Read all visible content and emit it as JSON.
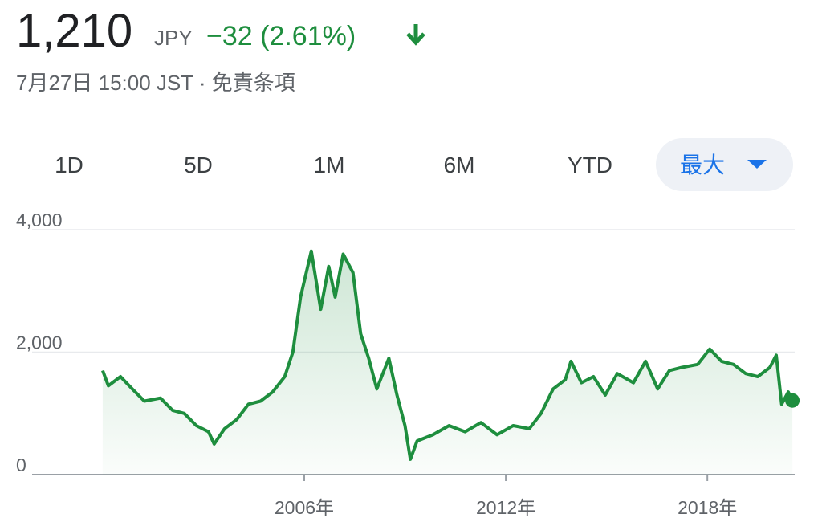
{
  "header": {
    "price": "1,210",
    "currency": "JPY",
    "change": "−32 (2.61%)",
    "timestamp": "7月27日 15:00 JST · 免責条項"
  },
  "range_buttons": {
    "labels": [
      "1D",
      "5D",
      "1M",
      "6M",
      "YTD",
      "最大"
    ],
    "selected": 5
  },
  "chart_data": {
    "type": "line",
    "color": "#1e8e3e",
    "x": [
      2000.0,
      2000.17,
      2000.53,
      2000.88,
      2001.24,
      2001.72,
      2002.08,
      2002.43,
      2002.79,
      2003.15,
      2003.32,
      2003.63,
      2003.99,
      2004.34,
      2004.7,
      2005.06,
      2005.42,
      2005.66,
      2005.89,
      2006.21,
      2006.49,
      2006.73,
      2006.92,
      2007.16,
      2007.45,
      2007.68,
      2007.92,
      2008.16,
      2008.52,
      2008.76,
      2009.0,
      2009.16,
      2009.36,
      2009.83,
      2010.31,
      2010.79,
      2011.26,
      2011.74,
      2012.22,
      2012.7,
      2013.05,
      2013.41,
      2013.77,
      2013.94,
      2014.25,
      2014.61,
      2014.96,
      2015.32,
      2015.8,
      2016.16,
      2016.52,
      2016.87,
      2017.23,
      2017.71,
      2018.07,
      2018.42,
      2018.78,
      2019.14,
      2019.5,
      2019.86,
      2020.05,
      2020.21,
      2020.41,
      2020.53
    ],
    "values": [
      1700,
      1450,
      1600,
      1400,
      1200,
      1250,
      1050,
      1000,
      800,
      700,
      500,
      750,
      900,
      1150,
      1200,
      1350,
      1600,
      2000,
      2900,
      3650,
      2700,
      3400,
      2900,
      3600,
      3300,
      2300,
      1900,
      1400,
      1900,
      1300,
      800,
      250,
      550,
      650,
      800,
      700,
      850,
      650,
      800,
      750,
      1000,
      1400,
      1550,
      1850,
      1500,
      1600,
      1300,
      1650,
      1500,
      1850,
      1400,
      1700,
      1750,
      1800,
      2050,
      1850,
      1800,
      1650,
      1600,
      1750,
      1950,
      1150,
      1350,
      1210
    ],
    "xlim": [
      1997.9,
      2020.6
    ],
    "xticks": [
      {
        "value": 2006,
        "label": "2006年"
      },
      {
        "value": 2012,
        "label": "2012年"
      },
      {
        "value": 2018,
        "label": "2018年"
      }
    ],
    "ylim": [
      0,
      4000
    ],
    "yticks": [
      0,
      {
        "value": 2000,
        "label": "2,000"
      },
      {
        "value": 4000,
        "label": "4,000"
      }
    ],
    "grid": true
  }
}
